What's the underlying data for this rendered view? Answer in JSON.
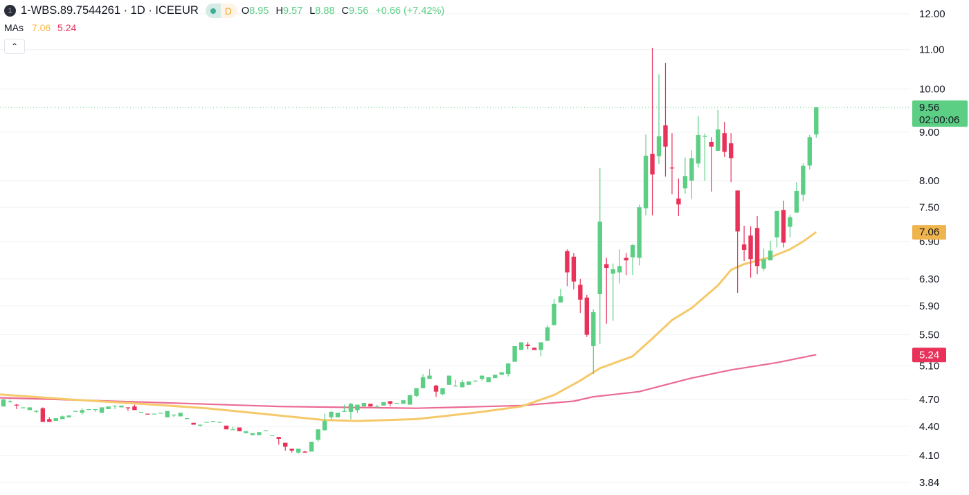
{
  "header": {
    "symbol_icon": "1",
    "title": "1-WBS.89.7544261 · 1D · ICEEUR",
    "status_dot_color": "#3fae95",
    "badge_label": "D",
    "ohlc": {
      "o_label": "O",
      "o": "8.95",
      "h_label": "H",
      "h": "9.57",
      "l_label": "L",
      "l": "8.88",
      "c_label": "C",
      "c": "9.56",
      "change": "+0.66 (+7.42%)"
    },
    "mas_label": "MAs",
    "ma1_value": "7.06",
    "ma2_value": "5.24",
    "collapse_icon": "chevron-up-icon"
  },
  "price_labels": {
    "last_price": "9.56",
    "countdown": "02:00:06",
    "ma1": "7.06",
    "ma2": "5.24"
  },
  "chart_data": {
    "type": "candlestick",
    "interval": "1D",
    "y_scale": "log",
    "ylim": [
      3.84,
      12.0
    ],
    "grid": true,
    "y_ticks": [
      "12.00",
      "11.00",
      "10.00",
      "9.00",
      "8.00",
      "7.50",
      "6.90",
      "6.30",
      "5.90",
      "5.50",
      "5.10",
      "4.70",
      "4.40",
      "4.10",
      "3.84"
    ],
    "colors": {
      "up": "#5ccf85",
      "down": "#e8325a",
      "ma1": "#f5c96a",
      "ma2": "#eb6a92",
      "last_price_label": "#5ccf85",
      "ma1_label": "#f0b44c",
      "ma2_label": "#e8325a"
    },
    "last_price": 9.56,
    "ohlc": [
      [
        4.62,
        4.71,
        4.62,
        4.7
      ],
      [
        4.67,
        4.7,
        4.66,
        4.68
      ],
      [
        4.64,
        4.65,
        4.59,
        4.63
      ],
      [
        4.6,
        4.61,
        4.6,
        4.61
      ],
      [
        4.58,
        4.61,
        4.58,
        4.61
      ],
      [
        4.57,
        4.58,
        4.55,
        4.57
      ],
      [
        4.6,
        4.61,
        4.45,
        4.45
      ],
      [
        4.48,
        4.5,
        4.45,
        4.45
      ],
      [
        4.46,
        4.49,
        4.46,
        4.49
      ],
      [
        4.48,
        4.52,
        4.48,
        4.51
      ],
      [
        4.5,
        4.52,
        4.5,
        4.52
      ],
      [
        4.57,
        4.57,
        4.56,
        4.57
      ],
      [
        4.55,
        4.6,
        4.53,
        4.58
      ],
      [
        4.59,
        4.59,
        4.58,
        4.59
      ],
      [
        4.59,
        4.59,
        4.56,
        4.59
      ],
      [
        4.55,
        4.61,
        4.55,
        4.61
      ],
      [
        4.59,
        4.62,
        4.59,
        4.62
      ],
      [
        4.63,
        4.63,
        4.59,
        4.63
      ],
      [
        4.61,
        4.63,
        4.61,
        4.63
      ],
      [
        4.61,
        4.61,
        4.57,
        4.6
      ],
      [
        4.62,
        4.64,
        4.58,
        4.58
      ],
      [
        4.56,
        4.56,
        4.56,
        4.56
      ],
      [
        4.54,
        4.54,
        4.53,
        4.53
      ],
      [
        4.54,
        4.54,
        4.54,
        4.54
      ],
      [
        4.55,
        4.55,
        4.55,
        4.55
      ],
      [
        4.5,
        4.57,
        4.5,
        4.57
      ],
      [
        4.52,
        4.53,
        4.5,
        4.53
      ],
      [
        4.51,
        4.55,
        4.51,
        4.55
      ],
      [
        4.49,
        4.49,
        4.48,
        4.49
      ],
      [
        4.44,
        4.44,
        4.42,
        4.42
      ],
      [
        4.41,
        4.42,
        4.4,
        4.42
      ],
      [
        4.45,
        4.45,
        4.45,
        4.45
      ],
      [
        4.46,
        4.46,
        4.45,
        4.46
      ],
      [
        4.45,
        4.45,
        4.44,
        4.45
      ],
      [
        4.41,
        4.41,
        4.37,
        4.37
      ],
      [
        4.37,
        4.4,
        4.37,
        4.37
      ],
      [
        4.39,
        4.39,
        4.35,
        4.35
      ],
      [
        4.33,
        4.35,
        4.33,
        4.35
      ],
      [
        4.31,
        4.33,
        4.31,
        4.33
      ],
      [
        4.31,
        4.34,
        4.31,
        4.34
      ],
      [
        4.36,
        4.36,
        4.36,
        4.36
      ],
      [
        4.31,
        4.31,
        4.31,
        4.31
      ],
      [
        4.29,
        4.29,
        4.21,
        4.27
      ],
      [
        4.23,
        4.23,
        4.15,
        4.19
      ],
      [
        4.17,
        4.17,
        4.13,
        4.15
      ],
      [
        4.13,
        4.17,
        4.12,
        4.17
      ],
      [
        4.14,
        4.15,
        4.13,
        4.13
      ],
      [
        4.14,
        4.24,
        4.14,
        4.24
      ],
      [
        4.26,
        4.37,
        4.24,
        4.37
      ],
      [
        4.36,
        4.54,
        4.36,
        4.46
      ],
      [
        4.5,
        4.57,
        4.47,
        4.56
      ],
      [
        4.5,
        4.55,
        4.5,
        4.55
      ],
      [
        4.56,
        4.64,
        4.56,
        4.57
      ],
      [
        4.56,
        4.66,
        4.48,
        4.65
      ],
      [
        4.58,
        4.64,
        4.55,
        4.64
      ],
      [
        4.62,
        4.66,
        4.62,
        4.66
      ],
      [
        4.65,
        4.65,
        4.62,
        4.62
      ],
      [
        4.61,
        4.64,
        4.61,
        4.62
      ],
      [
        4.63,
        4.67,
        4.63,
        4.67
      ],
      [
        4.68,
        4.68,
        4.62,
        4.65
      ],
      [
        4.66,
        4.66,
        4.65,
        4.66
      ],
      [
        4.65,
        4.69,
        4.65,
        4.69
      ],
      [
        4.64,
        4.75,
        4.64,
        4.75
      ],
      [
        4.74,
        4.83,
        4.73,
        4.83
      ],
      [
        4.83,
        5.0,
        4.83,
        4.96
      ],
      [
        4.94,
        5.06,
        4.94,
        4.98
      ],
      [
        4.86,
        4.87,
        4.73,
        4.79
      ],
      [
        4.76,
        4.83,
        4.75,
        4.83
      ],
      [
        4.87,
        4.98,
        4.87,
        4.98
      ],
      [
        4.86,
        4.93,
        4.85,
        4.86
      ],
      [
        4.84,
        4.93,
        4.84,
        4.9
      ],
      [
        4.87,
        4.91,
        4.87,
        4.91
      ],
      [
        4.92,
        4.92,
        4.9,
        4.92
      ],
      [
        4.94,
        4.98,
        4.92,
        4.98
      ],
      [
        4.9,
        4.96,
        4.9,
        4.96
      ],
      [
        4.95,
        4.99,
        4.95,
        4.99
      ],
      [
        4.99,
        5.02,
        4.99,
        5.02
      ],
      [
        5.0,
        5.13,
        4.97,
        5.13
      ],
      [
        5.15,
        5.35,
        5.15,
        5.35
      ],
      [
        5.3,
        5.4,
        5.3,
        5.4
      ],
      [
        5.37,
        5.4,
        5.31,
        5.35
      ],
      [
        5.33,
        5.33,
        5.3,
        5.3
      ],
      [
        5.3,
        5.4,
        5.22,
        5.4
      ],
      [
        5.42,
        5.63,
        5.42,
        5.6
      ],
      [
        5.63,
        6.0,
        5.63,
        5.93
      ],
      [
        5.95,
        6.15,
        5.95,
        6.04
      ],
      [
        6.74,
        6.77,
        6.19,
        6.4
      ],
      [
        6.65,
        6.71,
        6.14,
        6.26
      ],
      [
        6.21,
        6.3,
        5.8,
        5.99
      ],
      [
        6.02,
        6.06,
        5.47,
        5.5
      ],
      [
        5.35,
        5.85,
        5.0,
        5.81
      ],
      [
        6.07,
        8.25,
        5.38,
        7.24
      ],
      [
        6.53,
        6.63,
        5.65,
        6.47
      ],
      [
        6.38,
        6.54,
        5.69,
        6.45
      ],
      [
        6.4,
        6.77,
        6.23,
        6.5
      ],
      [
        6.63,
        6.71,
        6.36,
        6.59
      ],
      [
        6.64,
        6.86,
        6.36,
        6.84
      ],
      [
        6.63,
        7.55,
        6.51,
        7.5
      ],
      [
        7.48,
        8.95,
        7.35,
        8.5
      ],
      [
        8.54,
        11.05,
        7.35,
        8.12
      ],
      [
        8.49,
        10.36,
        8.33,
        8.91
      ],
      [
        9.15,
        10.65,
        8.08,
        8.69
      ],
      [
        8.26,
        8.98,
        7.74,
        8.24
      ],
      [
        7.66,
        8.04,
        7.34,
        7.55
      ],
      [
        7.85,
        8.46,
        7.75,
        8.09
      ],
      [
        8.0,
        8.61,
        7.65,
        8.45
      ],
      [
        8.34,
        9.36,
        8.26,
        8.94
      ],
      [
        8.9,
        8.97,
        8.0,
        8.92
      ],
      [
        8.79,
        8.89,
        7.79,
        8.69
      ],
      [
        8.6,
        9.5,
        8.6,
        9.06
      ],
      [
        8.98,
        9.23,
        8.47,
        8.58
      ],
      [
        8.76,
        8.98,
        7.97,
        8.45
      ],
      [
        7.81,
        7.81,
        6.09,
        7.07
      ],
      [
        6.85,
        7.17,
        6.58,
        6.76
      ],
      [
        7.0,
        7.16,
        6.32,
        6.61
      ],
      [
        7.13,
        7.34,
        6.37,
        6.5
      ],
      [
        6.46,
        6.78,
        6.42,
        6.61
      ],
      [
        6.59,
        6.91,
        6.59,
        6.75
      ],
      [
        6.97,
        7.43,
        6.8,
        7.43
      ],
      [
        7.45,
        7.62,
        6.8,
        6.88
      ],
      [
        7.15,
        7.36,
        6.97,
        7.32
      ],
      [
        7.4,
        7.97,
        7.4,
        7.8
      ],
      [
        7.73,
        8.34,
        7.61,
        8.29
      ],
      [
        8.3,
        8.94,
        8.22,
        8.89
      ],
      [
        8.95,
        9.57,
        8.88,
        9.56
      ]
    ],
    "moving_averages": [
      {
        "name": "MA 1",
        "last": 7.06,
        "points": [
          [
            -1,
            4.76
          ],
          [
            10,
            4.7
          ],
          [
            21,
            4.65
          ],
          [
            31,
            4.6
          ],
          [
            42,
            4.52
          ],
          [
            49,
            4.47
          ],
          [
            54,
            4.46
          ],
          [
            63,
            4.48
          ],
          [
            73,
            4.56
          ],
          [
            79,
            4.62
          ],
          [
            84,
            4.75
          ],
          [
            88,
            4.92
          ],
          [
            91,
            5.07
          ],
          [
            96,
            5.22
          ],
          [
            99,
            5.45
          ],
          [
            102,
            5.7
          ],
          [
            105,
            5.87
          ],
          [
            109,
            6.2
          ],
          [
            111,
            6.44
          ],
          [
            113,
            6.53
          ],
          [
            117,
            6.64
          ],
          [
            120,
            6.77
          ],
          [
            122,
            6.9
          ],
          [
            124,
            7.06
          ]
        ]
      },
      {
        "name": "MA 2",
        "last": 5.24,
        "points": [
          [
            -1,
            4.72
          ],
          [
            21,
            4.67
          ],
          [
            42,
            4.62
          ],
          [
            63,
            4.6
          ],
          [
            79,
            4.63
          ],
          [
            87,
            4.68
          ],
          [
            90,
            4.73
          ],
          [
            97,
            4.79
          ],
          [
            101,
            4.87
          ],
          [
            105,
            4.95
          ],
          [
            111,
            5.05
          ],
          [
            118,
            5.14
          ],
          [
            124,
            5.24
          ]
        ]
      }
    ]
  }
}
